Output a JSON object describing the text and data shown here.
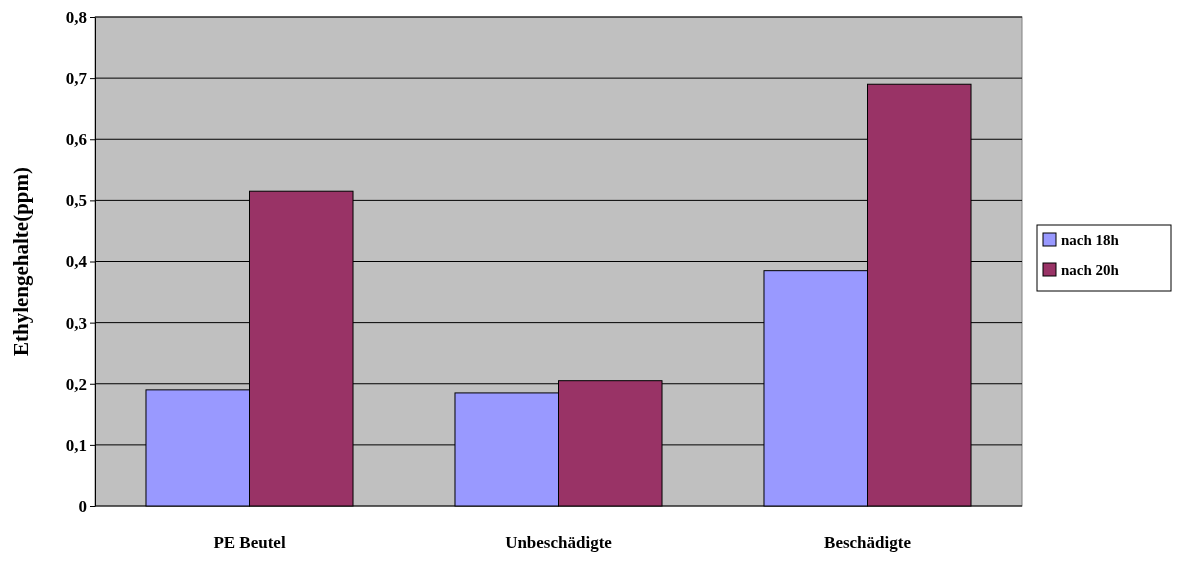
{
  "chart_data": {
    "type": "bar",
    "ylabel": "Ethylengehalte(ppm)",
    "categories": [
      "PE Beutel",
      "Unbeschädigte",
      "Beschädigte"
    ],
    "series": [
      {
        "name": "nach 18h",
        "color": "#9999ff",
        "values": [
          0.19,
          0.185,
          0.385
        ]
      },
      {
        "name": "nach 20h",
        "color": "#993366",
        "values": [
          0.515,
          0.205,
          0.69
        ]
      }
    ],
    "ylim": [
      0,
      0.8
    ],
    "yticks": [
      {
        "value": 0,
        "label": "0"
      },
      {
        "value": 0.1,
        "label": "0,1"
      },
      {
        "value": 0.2,
        "label": "0,2"
      },
      {
        "value": 0.3,
        "label": "0,3"
      },
      {
        "value": 0.4,
        "label": "0,4"
      },
      {
        "value": 0.5,
        "label": "0,5"
      },
      {
        "value": 0.6,
        "label": "0,6"
      },
      {
        "value": 0.7,
        "label": "0,7"
      },
      {
        "value": 0.8,
        "label": "0,8"
      }
    ],
    "grid": "y",
    "legend": "right"
  }
}
